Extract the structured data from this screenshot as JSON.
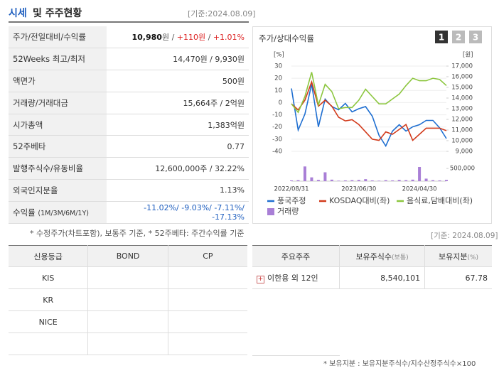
{
  "header": {
    "title_main": "시세",
    "title_rest": "및 주주현황",
    "date": "[기준:2024.08.09]"
  },
  "quote_table": {
    "rows": [
      {
        "label": "주가/전일대비/수익률",
        "value": [
          "10,980",
          "원",
          " / ",
          "+110원",
          " / ",
          "+1.01%"
        ]
      },
      {
        "label": "52Weeks 최고/최저",
        "value": [
          "14,470원 / 9,930원"
        ]
      },
      {
        "label": "액면가",
        "value": [
          "500원"
        ]
      },
      {
        "label": "거래량/거래대금",
        "value": [
          "15,664주 / 2억원"
        ]
      },
      {
        "label": "시가총액",
        "value": [
          "1,383억원"
        ]
      },
      {
        "label": "52주베타",
        "value": [
          "0.77"
        ]
      },
      {
        "label": "발행주식수/유동비율",
        "value": [
          "12,600,000주 / 32.22%"
        ]
      },
      {
        "label": "외국인지분율",
        "value": [
          "1.13%"
        ]
      },
      {
        "label": "수익률",
        "sub": "(1M/3M/6M/1Y)",
        "value": [
          "-11.02%/ -9.03%/ -7.11%/ -17.13%"
        ]
      }
    ],
    "note": "* 수정주가(차트포함), 보통주 기준, * 52주베타: 주간수익률 기준"
  },
  "chart_data": {
    "type": "line",
    "title": "주가/상대수익률",
    "buttons": [
      "1",
      "2",
      "3"
    ],
    "ylabel": "[%]",
    "y2label": "[원]",
    "categories": [
      "2022/08/31",
      null,
      null,
      null,
      null,
      null,
      null,
      null,
      null,
      null,
      "2023/06/30",
      null,
      null,
      null,
      null,
      null,
      null,
      null,
      null,
      "2024/04/30",
      null,
      null,
      null,
      null
    ],
    "ylim": [
      -40,
      30
    ],
    "yticks": [
      -40,
      -30,
      -20,
      -10,
      0,
      10,
      20,
      30
    ],
    "y2lim": [
      9000,
      17000
    ],
    "y2ticks": [
      {
        "value": 9000,
        "label": "9,000"
      },
      {
        "value": 10000,
        "label": "10,000"
      },
      {
        "value": 11000,
        "label": "11,000"
      },
      {
        "value": 12000,
        "label": "12,000"
      },
      {
        "value": 13000,
        "label": "13,000"
      },
      {
        "value": 14000,
        "label": "14,000"
      },
      {
        "value": 15000,
        "label": "15,000"
      },
      {
        "value": 16000,
        "label": "16,000"
      },
      {
        "value": 17000,
        "label": "17,000"
      }
    ],
    "vlim": [
      0,
      700000
    ],
    "vticks": [
      {
        "value": 500000,
        "label": "500,000"
      }
    ],
    "series": [
      {
        "name": "풍국주정",
        "color": "#1f6fd1",
        "axis": "y2",
        "values": [
          14900,
          11000,
          12500,
          15300,
          11300,
          13900,
          13200,
          12900,
          13500,
          12700,
          13000,
          13200,
          12300,
          10500,
          9500,
          10900,
          11500,
          10900,
          11300,
          11500,
          11900,
          11900,
          11200,
          10200
        ]
      },
      {
        "name": "KOSDAQ대비(좌)",
        "color": "#d23b1c",
        "values": [
          -1,
          -6,
          2,
          17,
          -3,
          2,
          -3,
          -12,
          -15,
          -14,
          -18,
          -24,
          -30,
          -31,
          -24,
          -26,
          -22,
          -18,
          -31,
          -26,
          -21,
          -21,
          -21,
          -23
        ]
      },
      {
        "name": "음식료,담배대비(좌)",
        "color": "#8cc63f",
        "values": [
          -1,
          -8,
          5,
          25,
          -2,
          15,
          9,
          -5,
          -4,
          -4,
          2,
          11,
          5,
          -1,
          -1,
          3,
          7,
          14,
          20,
          18,
          18,
          20,
          19,
          14
        ]
      },
      {
        "name": "거래량",
        "color": "#a97fd6",
        "type": "bar",
        "axis": "v",
        "values": [
          30000,
          40000,
          580000,
          150000,
          50000,
          350000,
          60000,
          20000,
          30000,
          40000,
          50000,
          80000,
          30000,
          20000,
          40000,
          30000,
          50000,
          40000,
          60000,
          560000,
          100000,
          40000,
          30000,
          50000
        ]
      }
    ]
  },
  "credit_table": {
    "header": [
      "신용등급",
      "BOND",
      "CP"
    ],
    "rows": [
      [
        "KIS",
        "",
        ""
      ],
      [
        "KR",
        "",
        ""
      ],
      [
        "NICE",
        "",
        ""
      ],
      [
        "",
        "",
        ""
      ]
    ]
  },
  "holder_table": {
    "date": "[기준: 2024.08.09]",
    "header": [
      "주요주주",
      "보유주식수",
      "(보통)",
      "보유지분",
      "(%)"
    ],
    "rows": [
      [
        "이한용 외 12인",
        "8,540,101",
        "67.78"
      ]
    ],
    "note": "* 보유지분 : 보유지분주식수/지수산정주식수×100"
  }
}
